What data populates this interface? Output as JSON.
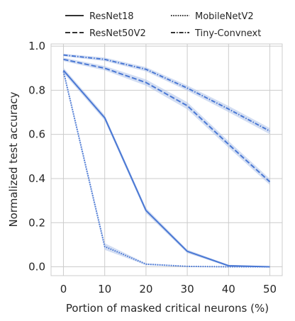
{
  "chart_data": {
    "type": "line",
    "xlabel": "Portion of masked critical neurons (%)",
    "ylabel": "Normalized test accuracy",
    "xlim": [
      -3,
      53
    ],
    "ylim": [
      -0.04,
      1.01
    ],
    "x": [
      0,
      10,
      20,
      30,
      40,
      50
    ],
    "xticks": [
      "0",
      "10",
      "20",
      "30",
      "40",
      "50"
    ],
    "yticks": [
      "0.0",
      "0.2",
      "0.4",
      "0.6",
      "0.8",
      "1.0"
    ],
    "grid": true,
    "legend_position": "top",
    "line_color": "#4a78d4",
    "band_color": "#aec3ea",
    "series": [
      {
        "name": "ResNet18",
        "linestyle": "solid",
        "values": [
          0.89,
          0.675,
          0.255,
          0.07,
          0.005,
          0.0
        ],
        "band": [
          0.012,
          0.012,
          0.012,
          0.008,
          0.004,
          0.002
        ]
      },
      {
        "name": "ResNet50V2",
        "linestyle": "dashed",
        "values": [
          0.94,
          0.9,
          0.835,
          0.73,
          0.555,
          0.385
        ],
        "band": [
          0.008,
          0.01,
          0.014,
          0.016,
          0.015,
          0.014
        ]
      },
      {
        "name": "MobileNetV2",
        "linestyle": "dotted",
        "values": [
          0.885,
          0.092,
          0.012,
          0.002,
          0.0,
          0.0
        ],
        "band": [
          0.012,
          0.015,
          0.004,
          0.002,
          0.001,
          0.001
        ]
      },
      {
        "name": "Tiny-Convnext",
        "linestyle": "dashdot",
        "values": [
          0.96,
          0.94,
          0.895,
          0.81,
          0.715,
          0.615
        ],
        "band": [
          0.006,
          0.008,
          0.01,
          0.012,
          0.014,
          0.014
        ]
      }
    ]
  }
}
